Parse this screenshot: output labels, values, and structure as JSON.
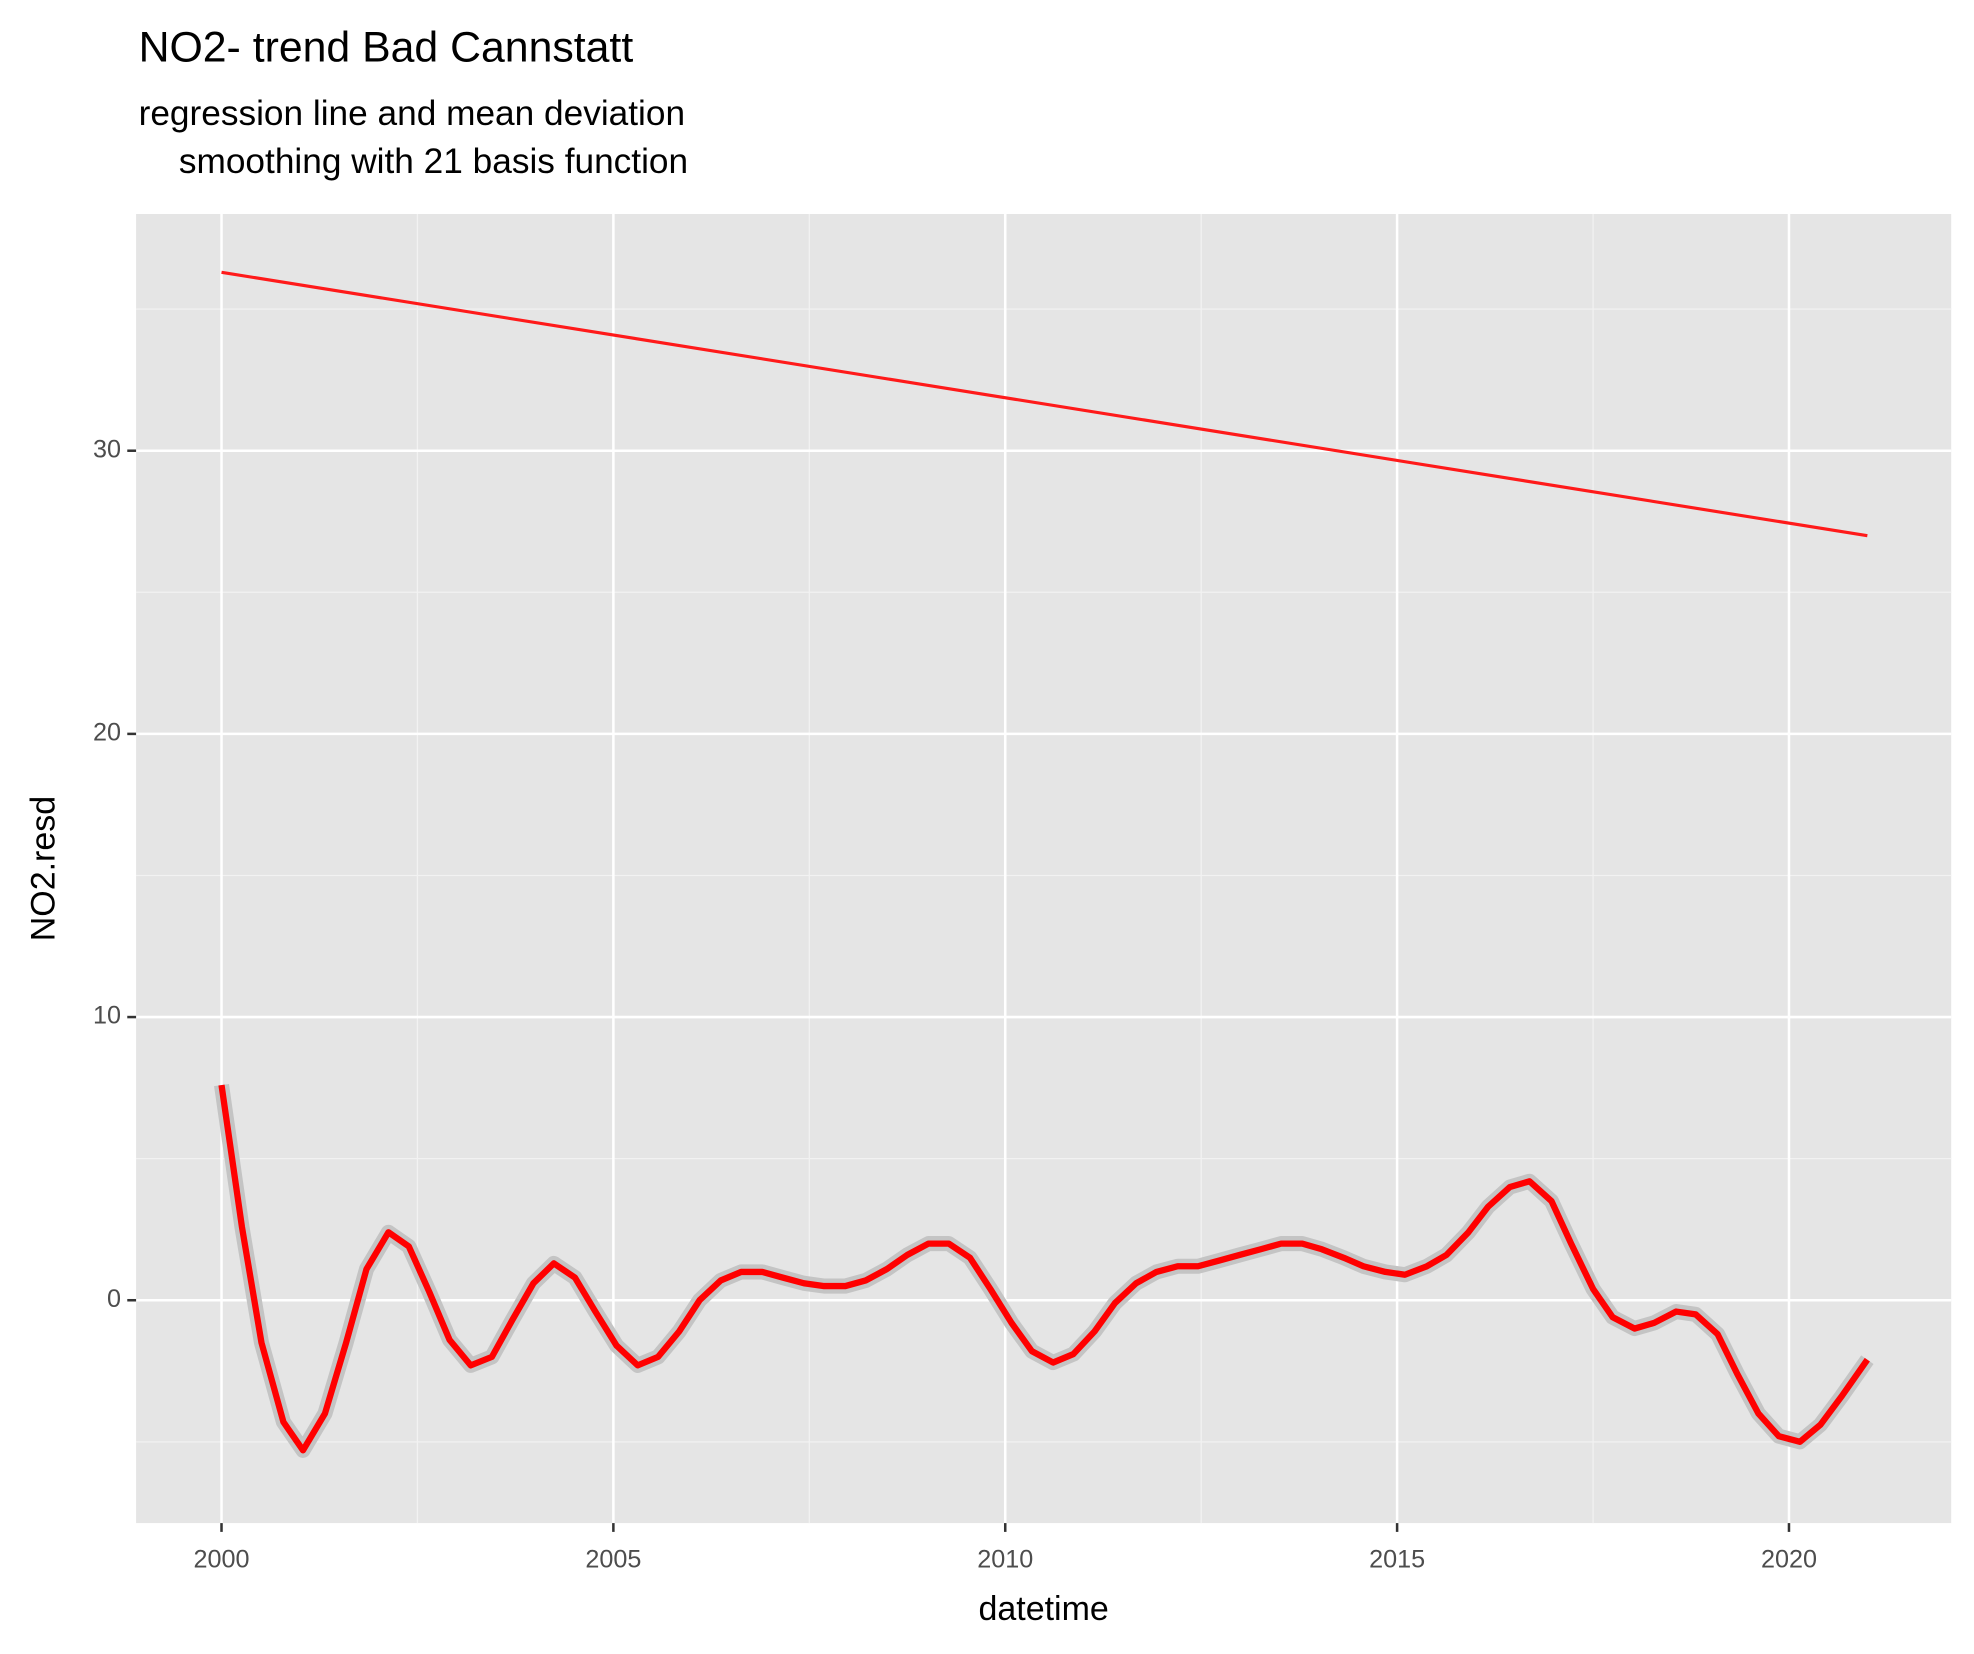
{
  "chart_data": {
    "type": "line",
    "title": "NO2- trend Bad Cannstatt",
    "subtitle": [
      "regression line and mean deviation",
      "smoothing with 21 basis function"
    ],
    "x_label": "datetime",
    "y_label": "NO2.resd",
    "xlim": [
      1998.91,
      2022.07
    ],
    "xticks": [
      2000,
      2005,
      2010,
      2015,
      2020
    ],
    "ylim": [
      -7.87,
      38.36
    ],
    "yticks": [
      0,
      10,
      20,
      30
    ],
    "grid": true,
    "series": [
      {
        "name": "regression line",
        "color": "#ff1a1a",
        "width": 2.5,
        "x": [
          2000,
          2021
        ],
        "values": [
          36.3,
          27.0
        ]
      },
      {
        "name": "smoothing",
        "color": "#ff0000",
        "width": 5,
        "x": [
          2000.0,
          2000.26,
          2000.51,
          2000.79,
          2001.04,
          2001.32,
          2001.59,
          2001.85,
          2002.13,
          2002.39,
          2002.65,
          2002.91,
          2003.18,
          2003.45,
          2003.71,
          2003.98,
          2004.24,
          2004.51,
          2004.77,
          2005.04,
          2005.31,
          2005.57,
          2005.84,
          2006.1,
          2006.37,
          2006.63,
          2006.9,
          2007.16,
          2007.43,
          2007.69,
          2007.96,
          2008.22,
          2008.49,
          2008.75,
          2009.02,
          2009.28,
          2009.55,
          2009.81,
          2010.08,
          2010.34,
          2010.61,
          2010.87,
          2011.14,
          2011.4,
          2011.67,
          2011.93,
          2012.2,
          2012.46,
          2012.73,
          2012.99,
          2013.26,
          2013.52,
          2013.79,
          2014.04,
          2014.32,
          2014.57,
          2014.85,
          2015.1,
          2015.38,
          2015.63,
          2015.91,
          2016.16,
          2016.44,
          2016.69,
          2016.97,
          2017.22,
          2017.5,
          2017.75,
          2018.03,
          2018.28,
          2018.56,
          2018.81,
          2019.09,
          2019.34,
          2019.61,
          2019.87,
          2020.14,
          2020.4,
          2020.67,
          2021.0
        ],
        "values": [
          7.6,
          2.6,
          -1.5,
          -4.3,
          -5.3,
          -4.0,
          -1.5,
          1.1,
          2.4,
          1.9,
          0.3,
          -1.4,
          -2.3,
          -2.0,
          -0.7,
          0.6,
          1.3,
          0.8,
          -0.4,
          -1.6,
          -2.3,
          -2.0,
          -1.1,
          0.0,
          0.7,
          1.0,
          1.0,
          0.8,
          0.6,
          0.5,
          0.5,
          0.7,
          1.1,
          1.6,
          2.0,
          2.0,
          1.5,
          0.4,
          -0.8,
          -1.8,
          -2.2,
          -1.9,
          -1.1,
          -0.1,
          0.6,
          1.0,
          1.2,
          1.2,
          1.4,
          1.6,
          1.8,
          2.0,
          2.0,
          1.8,
          1.5,
          1.2,
          1.0,
          0.9,
          1.2,
          1.6,
          2.4,
          3.3,
          4.0,
          4.2,
          3.5,
          2.0,
          0.4,
          -0.6,
          -1.0,
          -0.8,
          -0.4,
          -0.5,
          -1.2,
          -2.6,
          -4.0,
          -4.8,
          -5.0,
          -4.4,
          -3.4,
          -2.1
        ]
      }
    ]
  }
}
